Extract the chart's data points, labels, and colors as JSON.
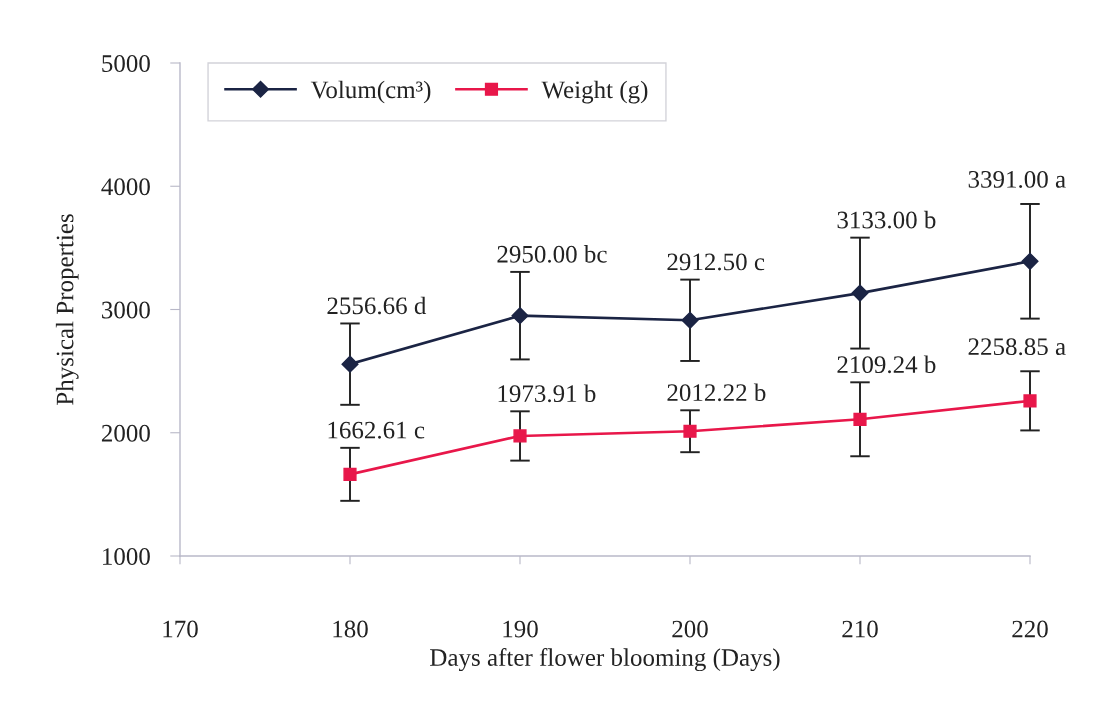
{
  "chart_data": {
    "type": "line",
    "xlabel": "Days after flower blooming (Days)",
    "ylabel": "Physical Properties",
    "x": [
      180,
      190,
      200,
      210,
      220
    ],
    "xlim": [
      170,
      220
    ],
    "xticks": [
      170,
      180,
      190,
      200,
      210,
      220
    ],
    "ylim": [
      1000,
      5000
    ],
    "yticks": [
      1000,
      2000,
      3000,
      4000,
      5000
    ],
    "grid": false,
    "legend": "top left",
    "line_style": "solid",
    "series": [
      {
        "name": "Volum(cm³)",
        "color": "#1b2444",
        "marker": "diamond",
        "values": [
          2556.66,
          2950.0,
          2912.5,
          3133.0,
          3391.0
        ],
        "errors": [
          330,
          355,
          330,
          450,
          465
        ],
        "value_labels": [
          "2556.66 d",
          "2950.00 bc",
          "2912.50 c",
          "3133.00 b",
          "3391.00 a"
        ]
      },
      {
        "name": "Weight (g)",
        "color": "#e8174a",
        "marker": "square",
        "values": [
          1662.61,
          1973.91,
          2012.22,
          2109.24,
          2258.85
        ],
        "errors": [
          215,
          200,
          170,
          300,
          240
        ],
        "value_labels": [
          "1662.61 c",
          "1973.91 b",
          "2012.22 b",
          "2109.24 b",
          "2258.85 a"
        ]
      }
    ]
  }
}
